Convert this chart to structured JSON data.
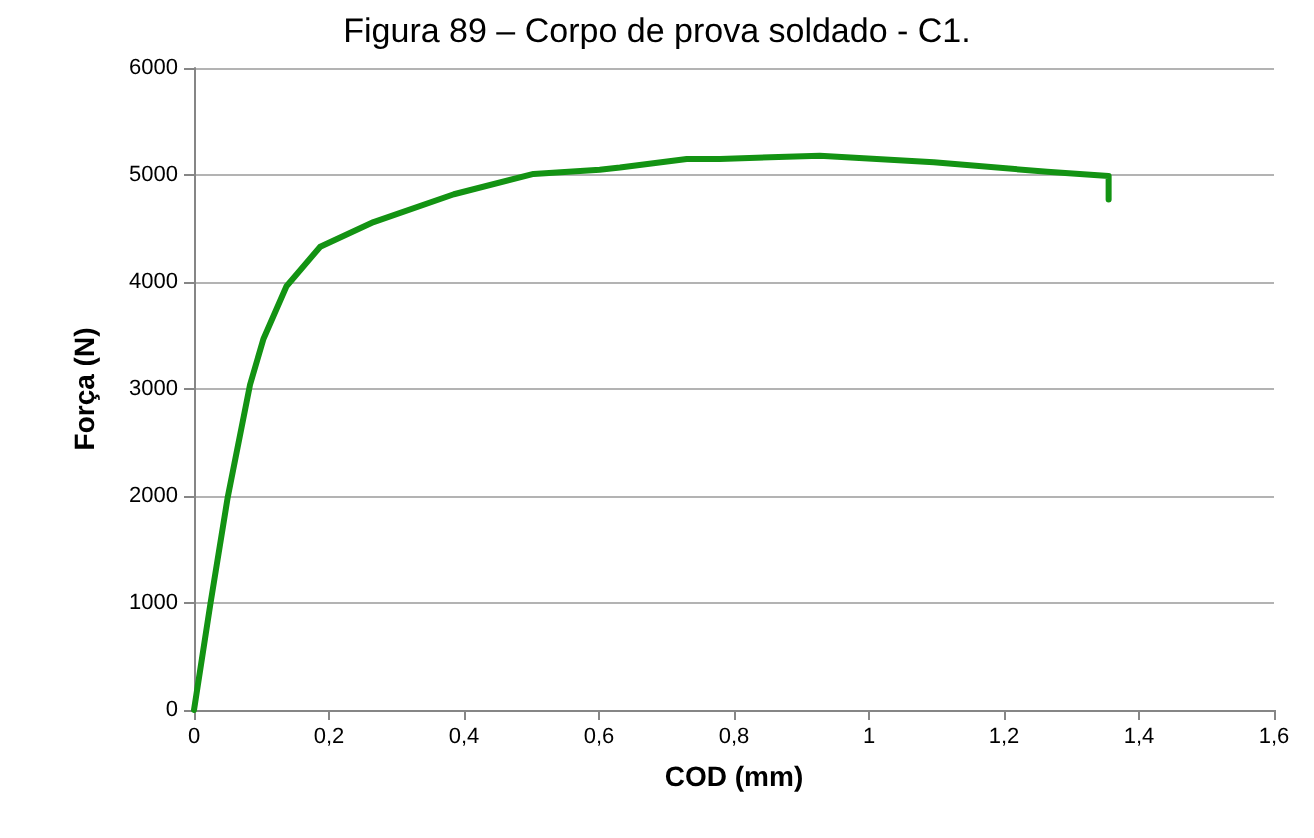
{
  "chart_data": {
    "type": "line",
    "title": "Figura 89 – Corpo de prova soldado - C1.",
    "xlabel": "COD (mm)",
    "ylabel": "Força (N)",
    "xlim": [
      0,
      1.6
    ],
    "xticks": [
      {
        "value": 0,
        "label": "0"
      },
      {
        "value": 0.2,
        "label": "0,2"
      },
      {
        "value": 0.4,
        "label": "0,4"
      },
      {
        "value": 0.6,
        "label": "0,6"
      },
      {
        "value": 0.8,
        "label": "0,8"
      },
      {
        "value": 1,
        "label": "1"
      },
      {
        "value": 1.2,
        "label": "1,2"
      },
      {
        "value": 1.4,
        "label": "1,4"
      },
      {
        "value": 1.6,
        "label": "1,6"
      }
    ],
    "ylim": [
      0,
      6000
    ],
    "yticks": [
      0,
      1000,
      2000,
      3000,
      4000,
      5000,
      6000
    ],
    "grid": "y",
    "marker": "none",
    "line_style": "solid",
    "series": [
      {
        "color": "#139313",
        "x": [
          0,
          0.024,
          0.05,
          0.083,
          0.103,
          0.137,
          0.187,
          0.266,
          0.385,
          0.503,
          0.601,
          0.631,
          0.73,
          0.779,
          0.927,
          1.096,
          1.264,
          1.355,
          1.355
        ],
        "values": [
          0,
          980,
          1990,
          3040,
          3470,
          3960,
          4330,
          4560,
          4820,
          5010,
          5050,
          5070,
          5150,
          5150,
          5180,
          5120,
          5030,
          4990,
          4770
        ]
      }
    ]
  }
}
